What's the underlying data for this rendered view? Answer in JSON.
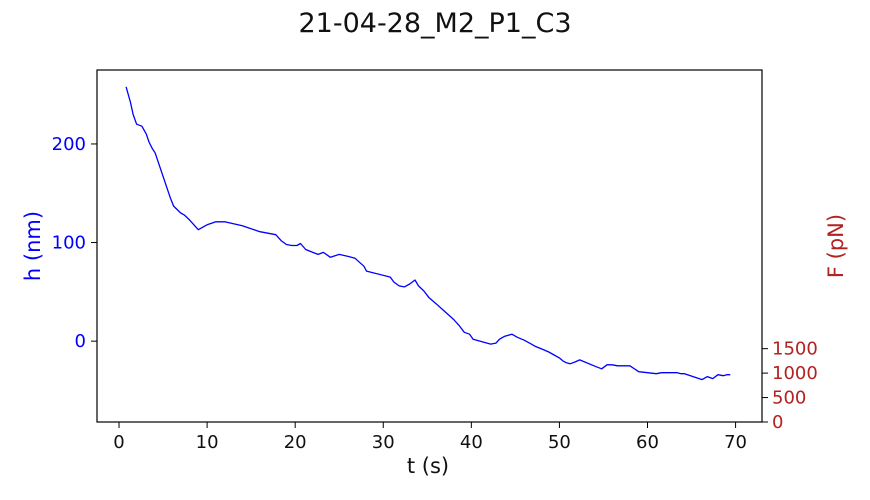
{
  "chart_data": {
    "type": "line",
    "title": "21-04-28_M2_P1_C3",
    "xlabel": "t (s)",
    "ylabel_left": "h (nm)",
    "ylabel_right": "F (pN)",
    "xlim": [
      -2.5,
      73
    ],
    "ylim_left": [
      -82,
      275
    ],
    "ylim_right": [
      0,
      7200
    ],
    "xticks": [
      0,
      10,
      20,
      30,
      40,
      50,
      60,
      70
    ],
    "yticks_left": [
      0,
      100,
      200
    ],
    "yticks_right": [
      0,
      500,
      1000,
      1500
    ],
    "grid": false,
    "colors": {
      "h": "#0000ff",
      "compression": "#7cfc00",
      "relaxation": "#ffd700",
      "force": "#b22222",
      "left_axis": "#0000ff",
      "right_axis": "#b22222"
    },
    "series": [
      {
        "axis": "left",
        "color": "#0000ff",
        "x": [
          0.8,
          1.3,
          1.6,
          2.0,
          2.6,
          3.1,
          3.4,
          3.8,
          4.1,
          5.8,
          6.2,
          7.0,
          7.4,
          8.0,
          9.0,
          10.0,
          11.0,
          12.0,
          13.0,
          14.0,
          15.0,
          16.0,
          17.8,
          18.4,
          19.0,
          19.6,
          20.2,
          20.6,
          21.2,
          22.0,
          22.6,
          23.2,
          24.0,
          25.0,
          26.0,
          26.8,
          27.3,
          27.8,
          28.1,
          30.8,
          31.2,
          31.8,
          32.4,
          33.0,
          33.6,
          34.0,
          34.6,
          35.2,
          36.0,
          37.0,
          38.0,
          38.6,
          39.2,
          39.8,
          40.2,
          42.2,
          42.8,
          43.2,
          43.8,
          44.6,
          45.2,
          46.0,
          46.6,
          47.2,
          48.0,
          48.8,
          49.4,
          50.0,
          50.4,
          50.8,
          51.2,
          51.8,
          52.3,
          54.2,
          54.8,
          55.4,
          56.0,
          56.6,
          57.2,
          58.0,
          59.0,
          60.0,
          61.0,
          61.6,
          62.2,
          62.8,
          63.4,
          63.8,
          64.2,
          66.2,
          66.8,
          67.4,
          68.0,
          68.6,
          69.0,
          69.4
        ],
        "y": [
          258,
          242,
          230,
          220,
          218,
          210,
          202,
          195,
          191,
          146,
          137,
          130,
          128,
          123,
          113,
          118,
          121,
          121,
          119,
          117,
          114,
          111,
          108,
          102,
          98,
          97,
          97,
          99,
          93,
          90,
          88,
          90,
          85,
          88,
          86,
          84,
          80,
          76,
          71,
          65,
          60,
          56,
          55,
          58,
          62,
          56,
          51,
          44,
          38,
          30,
          22,
          16,
          9,
          7,
          2,
          -3,
          -2,
          2,
          5,
          7,
          4,
          1,
          -2,
          -5,
          -8,
          -11,
          -14,
          -17,
          -20,
          -22,
          -23,
          -21,
          -19,
          -26,
          -28,
          -24,
          -24,
          -25,
          -25,
          -25,
          -31,
          -32,
          -33,
          -32,
          -32,
          -32,
          -32,
          -33,
          -33,
          -39,
          -36,
          -38,
          -34,
          -35,
          -34,
          -34
        ]
      }
    ]
  }
}
